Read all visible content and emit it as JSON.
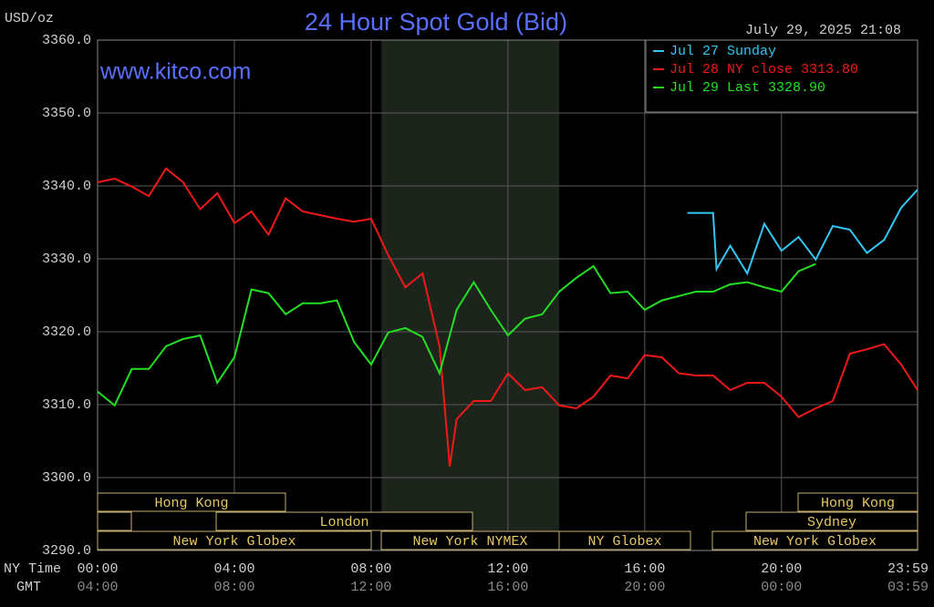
{
  "chart_data": {
    "type": "line",
    "title": "24 Hour Spot Gold (Bid)",
    "unit_label": "USD/oz",
    "watermark": "www.kitco.com",
    "timestamp": "July 29, 2025 21:08",
    "x_axis_label": "NY Time",
    "x2_axis_label": "GMT",
    "xlim": [
      0,
      23.98
    ],
    "xticks": [
      {
        "value": 0,
        "label": "00:00"
      },
      {
        "value": 4,
        "label": "04:00"
      },
      {
        "value": 8,
        "label": "08:00"
      },
      {
        "value": 12,
        "label": "12:00"
      },
      {
        "value": 16,
        "label": "16:00"
      },
      {
        "value": 20,
        "label": "20:00"
      },
      {
        "value": 23.98,
        "label": "23:59"
      }
    ],
    "x2tick_labels": [
      "04:00",
      "08:00",
      "12:00",
      "16:00",
      "20:00",
      "00:00",
      "03:59"
    ],
    "ylim": [
      3290,
      3360
    ],
    "yticks": [
      {
        "value": 3290,
        "label": "3290.0"
      },
      {
        "value": 3300,
        "label": "3300.0"
      },
      {
        "value": 3310,
        "label": "3310.0"
      },
      {
        "value": 3320,
        "label": "3320.0"
      },
      {
        "value": 3330,
        "label": "3330.0"
      },
      {
        "value": 3340,
        "label": "3340.0"
      },
      {
        "value": 3350,
        "label": "3350.0"
      },
      {
        "value": 3360,
        "label": "3360.0"
      }
    ],
    "grid": true,
    "legend": "top-right",
    "highlight_span": [
      8.3,
      13.5
    ],
    "sessions": [
      "Hong Kong",
      "London",
      "New York Globex",
      "New York NYMEX",
      "NY Globex",
      "Hong Kong",
      "Sydney",
      "New York Globex"
    ],
    "series": [
      {
        "name": "Jul 27 Sunday",
        "color": "#33c6f4",
        "x": [
          17.25,
          18.0,
          18.1,
          18.5,
          19,
          19.5,
          20,
          20.5,
          21,
          21.5,
          22,
          22.5,
          23,
          23.5,
          23.98
        ],
        "values": [
          3336.3,
          3336.3,
          3328.6,
          3331.8,
          3328,
          3334.8,
          3331.1,
          3333,
          3329.9,
          3334.5,
          3334,
          3330.8,
          3332.6,
          3337,
          3339.5
        ]
      },
      {
        "name": "Jul 28 NY close 3313.80",
        "color": "#f01818",
        "x": [
          0,
          0.5,
          1,
          1.5,
          2,
          2.5,
          3,
          3.5,
          4,
          4.5,
          5,
          5.5,
          6,
          6.5,
          7,
          7.5,
          8,
          8.5,
          9,
          9.5,
          10,
          10.3,
          10.5,
          11,
          11.5,
          12,
          12.5,
          13,
          13.5,
          14,
          14.5,
          15,
          15.5,
          16,
          16.5,
          17,
          17.5,
          18,
          18.5,
          19,
          19.5,
          20,
          20.5,
          21,
          21.5,
          22,
          22.5,
          23,
          23.5,
          23.98
        ],
        "values": [
          3340.5,
          3341,
          3339.9,
          3338.6,
          3342.4,
          3340.5,
          3336.8,
          3339,
          3334.9,
          3336.5,
          3333.3,
          3338.3,
          3336.5,
          3336,
          3335.5,
          3335.1,
          3335.5,
          3330.5,
          3326.1,
          3328,
          3318,
          3301.5,
          3308,
          3310.5,
          3310.5,
          3314.3,
          3312,
          3312.4,
          3309.9,
          3309.5,
          3311.1,
          3314,
          3313.6,
          3316.8,
          3316.5,
          3314.3,
          3314,
          3314,
          3312,
          3313,
          3313,
          3311.1,
          3308.3,
          3309.5,
          3310.5,
          3317,
          3317.6,
          3318.3,
          3315.5,
          3312
        ]
      },
      {
        "name": "Jul 29 Last 3328.90",
        "color": "#22e022",
        "x": [
          0,
          0.5,
          1,
          1.5,
          2,
          2.5,
          3,
          3.5,
          4,
          4.5,
          5,
          5.5,
          6,
          6.5,
          7,
          7.5,
          8,
          8.5,
          9,
          9.5,
          10,
          10.5,
          11,
          11.5,
          12,
          12.5,
          13,
          13.5,
          14,
          14.5,
          15,
          15.5,
          16,
          16.5,
          17,
          17.5,
          18,
          18.5,
          19,
          19.5,
          20,
          20.5,
          21
        ],
        "values": [
          3311.8,
          3309.9,
          3314.9,
          3314.9,
          3318,
          3319,
          3319.5,
          3313,
          3316.5,
          3325.8,
          3325.3,
          3322.4,
          3323.9,
          3323.9,
          3324.3,
          3318.6,
          3315.5,
          3319.9,
          3320.5,
          3319.3,
          3314.3,
          3323,
          3326.8,
          3323,
          3319.5,
          3321.8,
          3322.4,
          3325.5,
          3327.4,
          3329,
          3325.3,
          3325.5,
          3323,
          3324.3,
          3324.9,
          3325.5,
          3325.5,
          3326.5,
          3326.8,
          3326.1,
          3325.5,
          3328.3,
          3329.3
        ]
      }
    ]
  }
}
